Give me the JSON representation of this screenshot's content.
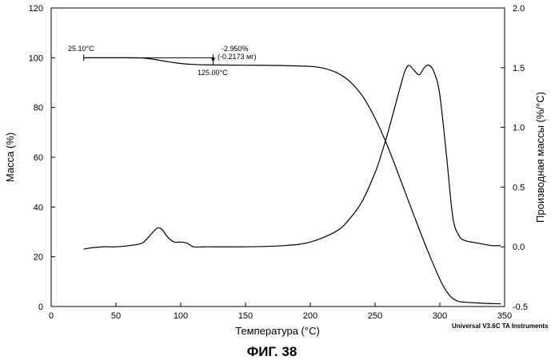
{
  "chart_data": {
    "type": "line",
    "xlabel": "Температура (°C)",
    "ylabel_left": "Масса (%)",
    "ylabel_right": "Производная массы (%/°C)",
    "xlim": [
      0,
      350
    ],
    "ylim_left": [
      0,
      120
    ],
    "ylim_right": [
      -0.5,
      2.0
    ],
    "x_ticks": [
      "0",
      "50",
      "100",
      "150",
      "200",
      "250",
      "300",
      "350"
    ],
    "y_left_ticks": [
      "0",
      "20",
      "40",
      "60",
      "80",
      "100",
      "120"
    ],
    "y_right_ticks": [
      "-0.5",
      "0.0",
      "0.5",
      "1.0",
      "1.5",
      "2.0"
    ],
    "series": [
      {
        "name": "Масса (%)",
        "axis": "left",
        "x": [
          25,
          50,
          70,
          80,
          90,
          100,
          110,
          125,
          150,
          175,
          200,
          210,
          220,
          230,
          240,
          250,
          260,
          270,
          280,
          290,
          300,
          305,
          310,
          315,
          320,
          330,
          340,
          347
        ],
        "y": [
          100,
          100,
          99.9,
          99.3,
          98.4,
          97.7,
          97.3,
          97.1,
          97.0,
          96.9,
          96.5,
          95.8,
          94.1,
          90.7,
          84.8,
          75.7,
          64.0,
          50.4,
          36.6,
          23.2,
          11.0,
          6.2,
          3.2,
          2.0,
          1.7,
          1.4,
          1.2,
          1.1
        ]
      },
      {
        "name": "Производная массы (%/°C)",
        "axis": "right",
        "x": [
          25,
          30,
          40,
          50,
          60,
          70,
          75,
          80,
          83,
          86,
          90,
          95,
          100,
          105,
          110,
          120,
          150,
          180,
          200,
          220,
          230,
          240,
          250,
          255,
          260,
          265,
          270,
          273,
          276,
          280,
          284,
          288,
          292,
          296,
          300,
          305,
          310,
          315,
          320,
          330,
          340,
          347
        ],
        "y": [
          -0.02,
          -0.01,
          0.0,
          0.0,
          0.01,
          0.03,
          0.08,
          0.14,
          0.16,
          0.14,
          0.08,
          0.04,
          0.04,
          0.03,
          0.0,
          0.0,
          0.0,
          0.01,
          0.04,
          0.13,
          0.23,
          0.38,
          0.62,
          0.78,
          0.96,
          1.16,
          1.36,
          1.47,
          1.52,
          1.48,
          1.44,
          1.5,
          1.52,
          1.45,
          1.27,
          0.78,
          0.25,
          0.09,
          0.05,
          0.03,
          0.01,
          0.01
        ]
      }
    ],
    "annotations": {
      "start_temp": "25.10°C",
      "loss_percent": "-2.950%",
      "loss_mass": "(-0.2173 мг)",
      "end_temp": "125.00°C"
    },
    "instrument": "Universal V3.6C TA Instruments",
    "figure_title": "ФИГ. 38"
  }
}
